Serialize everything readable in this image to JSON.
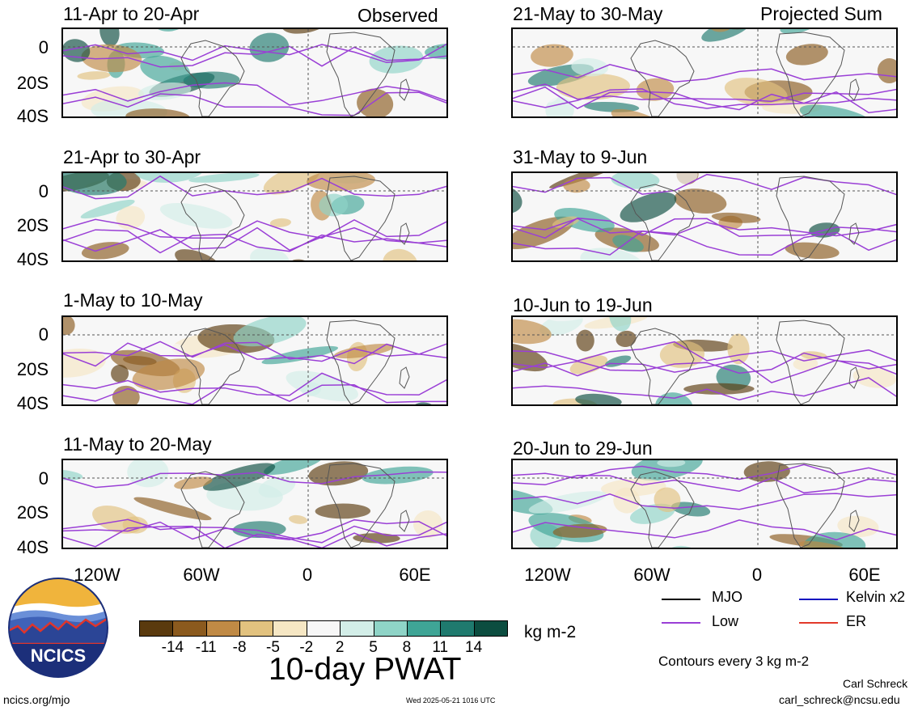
{
  "panels": [
    {
      "title": "11-Apr to 20-Apr",
      "tag": "Observed"
    },
    {
      "title": "21-Apr to 30-Apr",
      "tag": ""
    },
    {
      "title": "1-May to 10-May",
      "tag": ""
    },
    {
      "title": "11-May to 20-May",
      "tag": ""
    },
    {
      "title": "21-May to 30-May",
      "tag": "Projected Sum"
    },
    {
      "title": "31-May to 9-Jun",
      "tag": ""
    },
    {
      "title": "10-Jun to 19-Jun",
      "tag": ""
    },
    {
      "title": "20-Jun to 29-Jun",
      "tag": ""
    }
  ],
  "latitude_labels": [
    "0",
    "20S",
    "40S"
  ],
  "longitude_labels": [
    "120W",
    "60W",
    "0",
    "60E"
  ],
  "colorbar": {
    "colors": [
      "#5a3a0e",
      "#8b5a1e",
      "#c08a45",
      "#e2c27f",
      "#f6e7c4",
      "#f7f7f7",
      "#d3eee8",
      "#8fd4c7",
      "#3fa596",
      "#1f7a6e",
      "#0c4d40"
    ],
    "labels": [
      "-14",
      "-11",
      "-8",
      "-5",
      "-2",
      "2",
      "5",
      "8",
      "11",
      "14"
    ],
    "units": "kg m-2",
    "title": "10-day PWAT"
  },
  "legend": {
    "items": [
      {
        "label": "MJO",
        "color": "#000000"
      },
      {
        "label": "Kelvin x2",
        "color": "#1010c0"
      },
      {
        "label": "Low",
        "color": "#9a3fd6"
      },
      {
        "label": "ER",
        "color": "#e23a2a"
      }
    ],
    "contour_note": "Contours every 3 kg m-2"
  },
  "footer": {
    "logo_text": "NCICS",
    "site": "ncics.org/mjo",
    "timestamp": "Wed 2025-05-21 1016 UTC",
    "author": "Carl Schreck",
    "email": "carl_schreck@ncsu.edu"
  }
}
